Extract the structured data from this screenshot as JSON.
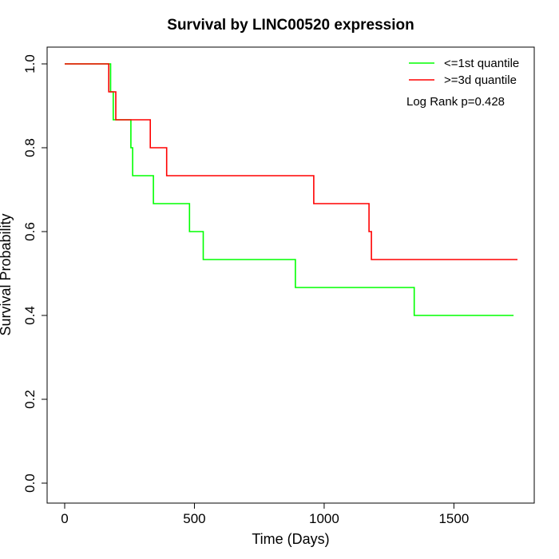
{
  "chart_data": {
    "type": "line",
    "title": "Survival by LINC00520 expression",
    "xlabel": "Time (Days)",
    "ylabel": "Survival Probability",
    "xlim": [
      0,
      1750
    ],
    "ylim": [
      0,
      1
    ],
    "xticks": [
      0,
      500,
      1000,
      1500
    ],
    "yticks": [
      0.0,
      0.2,
      0.4,
      0.6,
      0.8,
      1.0
    ],
    "xtick_labels": [
      "0",
      "500",
      "1000",
      "1500"
    ],
    "ytick_labels": [
      "0.0",
      "0.2",
      "0.4",
      "0.6",
      "0.8",
      "1.0"
    ],
    "grid": false,
    "legend_position": "top-right",
    "annotation": "Log Rank p=0.428",
    "series": [
      {
        "name": "<=1st quantile",
        "color": "#00ff00",
        "x": [
          0,
          177,
          177,
          187,
          187,
          255,
          255,
          262,
          262,
          342,
          342,
          481,
          481,
          534,
          534,
          889,
          889,
          1347,
          1347,
          1730
        ],
        "y": [
          1.0,
          1.0,
          0.9333,
          0.9333,
          0.8667,
          0.8667,
          0.8,
          0.8,
          0.7333,
          0.7333,
          0.6667,
          0.6667,
          0.6,
          0.6,
          0.5333,
          0.5333,
          0.4667,
          0.4667,
          0.4,
          0.4
        ]
      },
      {
        "name": ">=3d quantile",
        "color": "#ff0000",
        "x": [
          0,
          170,
          170,
          197,
          197,
          330,
          330,
          393,
          393,
          960,
          960,
          1173,
          1173,
          1182,
          1182,
          1745
        ],
        "y": [
          1.0,
          1.0,
          0.9333,
          0.9333,
          0.8667,
          0.8667,
          0.8,
          0.8,
          0.7333,
          0.7333,
          0.6667,
          0.6667,
          0.6,
          0.6,
          0.5333,
          0.5333
        ]
      }
    ]
  }
}
